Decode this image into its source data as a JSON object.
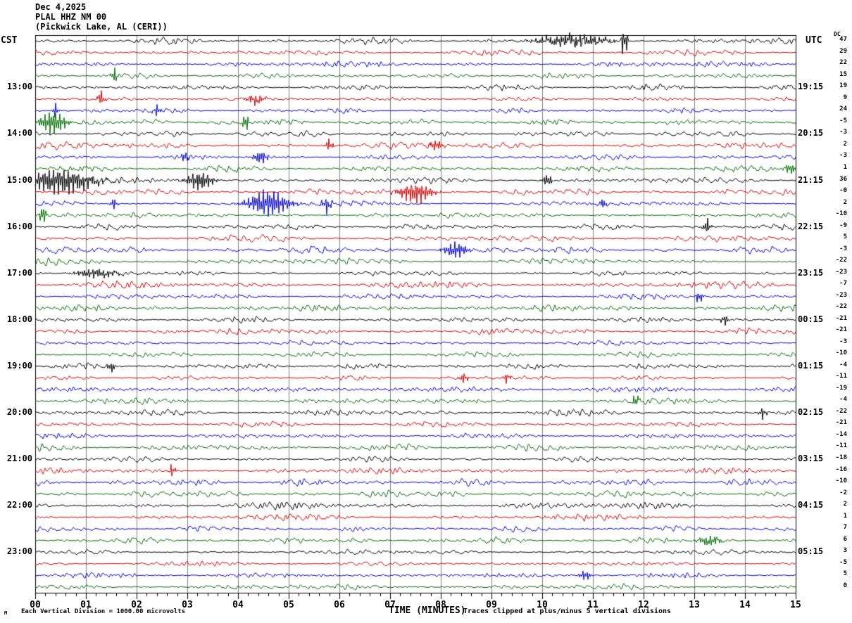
{
  "header": {
    "date": "Dec 4,2025",
    "station": "PLAL HHZ NM 00",
    "location": "(Pickwick Lake, AL (CERI))"
  },
  "axes": {
    "left_timezone": "CST",
    "right_timezone": "UTC",
    "dc_column_header": "DC",
    "time_axis_label": "TIME (MINUTES)"
  },
  "footer": {
    "scale_note": "Each Vertical Division = 1000.00 microvolts",
    "clip_note": "Traces clipped at plus/minus 5 vertical divisions",
    "signature": "M"
  },
  "chart_data": {
    "type": "line",
    "subtype": "helicorder_seismogram",
    "title": "PLAL HHZ NM 00 (Pickwick Lake, AL (CERI)) Dec 4,2025",
    "x_axis": {
      "label": "TIME (MINUTES)",
      "range_minutes": [
        0,
        15
      ],
      "tick_labels": [
        "00",
        "01",
        "02",
        "03",
        "04",
        "05",
        "06",
        "07",
        "08",
        "09",
        "10",
        "11",
        "12",
        "13",
        "14",
        "15"
      ],
      "minor_ticks_between_major": 4
    },
    "minutes_per_row": 15,
    "clip_divisions": 5,
    "grid_color": "#808080",
    "trace_color_cycle": [
      "#000000",
      "#d40000",
      "#0000d4",
      "#006b00"
    ],
    "rows": [
      {
        "cst": null,
        "utc": null,
        "dc": "47"
      },
      {
        "cst": null,
        "utc": null,
        "dc": "29"
      },
      {
        "cst": null,
        "utc": null,
        "dc": "22"
      },
      {
        "cst": null,
        "utc": null,
        "dc": "15"
      },
      {
        "cst": "13:00",
        "utc": "19:15",
        "dc": "19"
      },
      {
        "cst": null,
        "utc": null,
        "dc": "9"
      },
      {
        "cst": null,
        "utc": null,
        "dc": "24"
      },
      {
        "cst": null,
        "utc": null,
        "dc": "-5"
      },
      {
        "cst": "14:00",
        "utc": "20:15",
        "dc": "-3"
      },
      {
        "cst": null,
        "utc": null,
        "dc": "2"
      },
      {
        "cst": null,
        "utc": null,
        "dc": "-3"
      },
      {
        "cst": null,
        "utc": null,
        "dc": "1"
      },
      {
        "cst": "15:00",
        "utc": "21:15",
        "dc": "36"
      },
      {
        "cst": null,
        "utc": null,
        "dc": "-0"
      },
      {
        "cst": null,
        "utc": null,
        "dc": "2"
      },
      {
        "cst": null,
        "utc": null,
        "dc": "-10"
      },
      {
        "cst": "16:00",
        "utc": "22:15",
        "dc": "-9"
      },
      {
        "cst": null,
        "utc": null,
        "dc": "5"
      },
      {
        "cst": null,
        "utc": null,
        "dc": "-3"
      },
      {
        "cst": null,
        "utc": null,
        "dc": "-22"
      },
      {
        "cst": "17:00",
        "utc": "23:15",
        "dc": "-23"
      },
      {
        "cst": null,
        "utc": null,
        "dc": "-7"
      },
      {
        "cst": null,
        "utc": null,
        "dc": "-23"
      },
      {
        "cst": null,
        "utc": null,
        "dc": "-22"
      },
      {
        "cst": "18:00",
        "utc": "00:15",
        "dc": "-21"
      },
      {
        "cst": null,
        "utc": null,
        "dc": "-21"
      },
      {
        "cst": null,
        "utc": null,
        "dc": "-3"
      },
      {
        "cst": null,
        "utc": null,
        "dc": "-10"
      },
      {
        "cst": "19:00",
        "utc": "01:15",
        "dc": "-4"
      },
      {
        "cst": null,
        "utc": null,
        "dc": "-11"
      },
      {
        "cst": null,
        "utc": null,
        "dc": "-19"
      },
      {
        "cst": null,
        "utc": null,
        "dc": "-4"
      },
      {
        "cst": "20:00",
        "utc": "02:15",
        "dc": "-22"
      },
      {
        "cst": null,
        "utc": null,
        "dc": "-21"
      },
      {
        "cst": null,
        "utc": null,
        "dc": "-14"
      },
      {
        "cst": null,
        "utc": null,
        "dc": "-11"
      },
      {
        "cst": "21:00",
        "utc": "03:15",
        "dc": "-18"
      },
      {
        "cst": null,
        "utc": null,
        "dc": "-16"
      },
      {
        "cst": null,
        "utc": null,
        "dc": "-10"
      },
      {
        "cst": null,
        "utc": null,
        "dc": "-2"
      },
      {
        "cst": "22:00",
        "utc": "04:15",
        "dc": "2"
      },
      {
        "cst": null,
        "utc": null,
        "dc": "1"
      },
      {
        "cst": null,
        "utc": null,
        "dc": "7"
      },
      {
        "cst": null,
        "utc": null,
        "dc": "6"
      },
      {
        "cst": "23:00",
        "utc": "05:15",
        "dc": "3"
      },
      {
        "cst": null,
        "utc": null,
        "dc": "-5"
      },
      {
        "cst": null,
        "utc": null,
        "dc": "5"
      },
      {
        "cst": null,
        "utc": null,
        "dc": "0"
      }
    ],
    "events": [
      {
        "row": 0,
        "t": 10.6,
        "w": 0.5,
        "amp": 8
      },
      {
        "row": 0,
        "t": 11.62,
        "w": 0.05,
        "amp": 20
      },
      {
        "row": 3,
        "t": 1.56,
        "w": 0.04,
        "amp": 11
      },
      {
        "row": 5,
        "t": 1.3,
        "w": 0.05,
        "amp": 10
      },
      {
        "row": 5,
        "t": 4.35,
        "w": 0.12,
        "amp": 7
      },
      {
        "row": 6,
        "t": 0.4,
        "w": 0.04,
        "amp": 10
      },
      {
        "row": 6,
        "t": 2.4,
        "w": 0.05,
        "amp": 8
      },
      {
        "row": 7,
        "t": 0.35,
        "w": 0.18,
        "amp": 16
      },
      {
        "row": 7,
        "t": 4.15,
        "w": 0.04,
        "amp": 14
      },
      {
        "row": 9,
        "t": 5.8,
        "w": 0.05,
        "amp": 9
      },
      {
        "row": 9,
        "t": 7.9,
        "w": 0.1,
        "amp": 7
      },
      {
        "row": 10,
        "t": 2.95,
        "w": 0.04,
        "amp": 9
      },
      {
        "row": 10,
        "t": 4.45,
        "w": 0.1,
        "amp": 9
      },
      {
        "row": 11,
        "t": 14.9,
        "w": 0.08,
        "amp": 8
      },
      {
        "row": 12,
        "t": 0.5,
        "w": 0.45,
        "amp": 18
      },
      {
        "row": 12,
        "t": 3.25,
        "w": 0.18,
        "amp": 13
      },
      {
        "row": 12,
        "t": 10.1,
        "w": 0.07,
        "amp": 8
      },
      {
        "row": 13,
        "t": 7.5,
        "w": 0.22,
        "amp": 15
      },
      {
        "row": 14,
        "t": 1.55,
        "w": 0.05,
        "amp": 8
      },
      {
        "row": 14,
        "t": 4.6,
        "w": 0.28,
        "amp": 18
      },
      {
        "row": 14,
        "t": 5.75,
        "w": 0.06,
        "amp": 11
      },
      {
        "row": 14,
        "t": 11.2,
        "w": 0.05,
        "amp": 7
      },
      {
        "row": 15,
        "t": 0.15,
        "w": 0.04,
        "amp": 15
      },
      {
        "row": 16,
        "t": 13.25,
        "w": 0.05,
        "amp": 11
      },
      {
        "row": 18,
        "t": 8.3,
        "w": 0.16,
        "amp": 11
      },
      {
        "row": 20,
        "t": 1.2,
        "w": 0.3,
        "amp": 6
      },
      {
        "row": 22,
        "t": 13.1,
        "w": 0.05,
        "amp": 9
      },
      {
        "row": 24,
        "t": 13.6,
        "w": 0.05,
        "amp": 8
      },
      {
        "row": 28,
        "t": 1.5,
        "w": 0.05,
        "amp": 8
      },
      {
        "row": 29,
        "t": 8.45,
        "w": 0.06,
        "amp": 7
      },
      {
        "row": 29,
        "t": 9.3,
        "w": 0.05,
        "amp": 7
      },
      {
        "row": 31,
        "t": 11.85,
        "w": 0.05,
        "amp": 9
      },
      {
        "row": 32,
        "t": 14.35,
        "w": 0.05,
        "amp": 8
      },
      {
        "row": 37,
        "t": 2.7,
        "w": 0.05,
        "amp": 8
      },
      {
        "row": 43,
        "t": 13.3,
        "w": 0.15,
        "amp": 7
      },
      {
        "row": 46,
        "t": 10.85,
        "w": 0.08,
        "amp": 7
      }
    ]
  }
}
